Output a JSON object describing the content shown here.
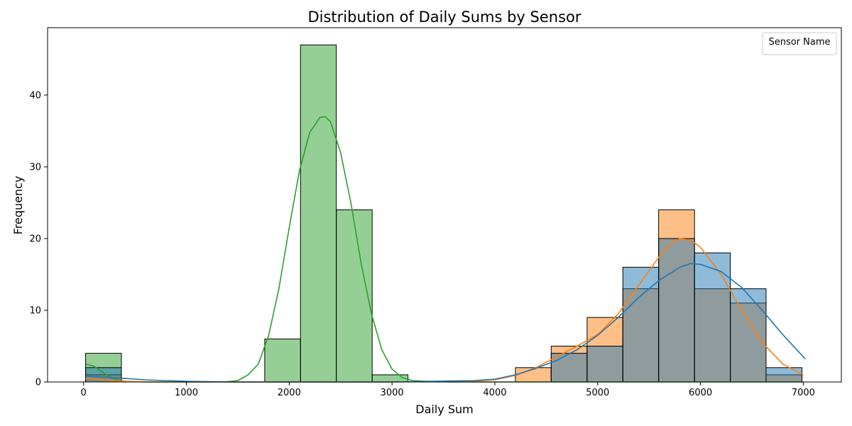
{
  "chart_data": {
    "type": "bar",
    "title": "Distribution of Daily Sums by Sensor",
    "xlabel": "Daily Sum",
    "ylabel": "Frequency",
    "xlim": [
      -350,
      7370
    ],
    "ylim": [
      0,
      49.4
    ],
    "x_ticks": [
      0,
      1000,
      2000,
      3000,
      4000,
      5000,
      6000,
      7000
    ],
    "y_ticks": [
      0,
      10,
      20,
      30,
      40
    ],
    "grid": false,
    "legend": {
      "title": "Sensor Name",
      "placement": "top-right",
      "entries": []
    },
    "bin_edges": [
      20,
      368,
      717,
      1065,
      1413,
      1762,
      2110,
      2458,
      2807,
      3155,
      3503,
      3852,
      4200,
      4548,
      4897,
      5245,
      5593,
      5942,
      6290,
      6638,
      6987
    ],
    "series": [
      {
        "color": "#2ca02c",
        "counts": [
          4,
          0,
          0,
          0,
          0,
          6,
          47,
          24,
          1,
          0,
          0,
          0,
          0,
          0,
          0,
          0,
          0,
          0,
          0,
          0
        ],
        "kde": {
          "x": [
            20,
            100,
            200,
            300,
            400,
            500,
            600,
            800,
            1000,
            1200,
            1400,
            1500,
            1600,
            1700,
            1800,
            1900,
            2000,
            2100,
            2200,
            2300,
            2350,
            2400,
            2500,
            2600,
            2700,
            2800,
            2900,
            3000,
            3100,
            3200,
            3400,
            3600,
            4000,
            5000,
            6000,
            7000
          ],
          "y": [
            2.5,
            2.2,
            1.2,
            0.4,
            0.1,
            0.05,
            0,
            0,
            0,
            0,
            0.05,
            0.2,
            1.0,
            2.5,
            6.5,
            13.0,
            21.5,
            29.5,
            34.8,
            36.9,
            37.0,
            36.3,
            32.0,
            25.0,
            16.5,
            9.5,
            4.5,
            1.8,
            0.6,
            0.2,
            0.05,
            0,
            0,
            0,
            0,
            0
          ]
        }
      },
      {
        "color": "#ff7f0e",
        "counts": [
          1,
          0,
          0,
          0,
          0,
          0,
          0,
          0,
          0,
          0,
          0,
          0,
          2,
          5,
          9,
          13,
          24,
          13,
          11,
          1
        ],
        "kde": {
          "x": [
            20,
            100,
            200,
            300,
            400,
            500,
            700,
            1000,
            2000,
            3000,
            3800,
            4000,
            4200,
            4400,
            4600,
            4800,
            5000,
            5200,
            5400,
            5600,
            5700,
            5800,
            5900,
            6000,
            6200,
            6400,
            6600,
            6800,
            7000
          ],
          "y": [
            0.5,
            0.4,
            0.3,
            0.2,
            0.1,
            0.05,
            0,
            0,
            0,
            0,
            0.1,
            0.3,
            0.9,
            2.0,
            3.5,
            5.0,
            6.6,
            9.5,
            13.5,
            17.5,
            19.2,
            20.0,
            19.8,
            18.8,
            15.0,
            10.0,
            5.5,
            2.5,
            1.0
          ]
        }
      },
      {
        "color": "#1f77b4",
        "counts": [
          2,
          0,
          0,
          0,
          0,
          0,
          0,
          0,
          0,
          0,
          0,
          0,
          0,
          4,
          5,
          16,
          20,
          18,
          13,
          2
        ],
        "kde": {
          "x": [
            20,
            200,
            400,
            600,
            800,
            1000,
            1200,
            1500,
            2000,
            3000,
            3800,
            4000,
            4200,
            4400,
            4600,
            4800,
            5000,
            5200,
            5400,
            5600,
            5800,
            5900,
            6000,
            6200,
            6400,
            6600,
            6800,
            7020
          ],
          "y": [
            0.8,
            0.7,
            0.5,
            0.3,
            0.2,
            0.1,
            0.05,
            0,
            0,
            0,
            0.2,
            0.4,
            1.0,
            1.9,
            3.0,
            4.5,
            6.5,
            9.0,
            11.8,
            14.2,
            16.0,
            16.5,
            16.4,
            15.4,
            13.2,
            10.0,
            6.6,
            3.2
          ]
        }
      }
    ]
  }
}
